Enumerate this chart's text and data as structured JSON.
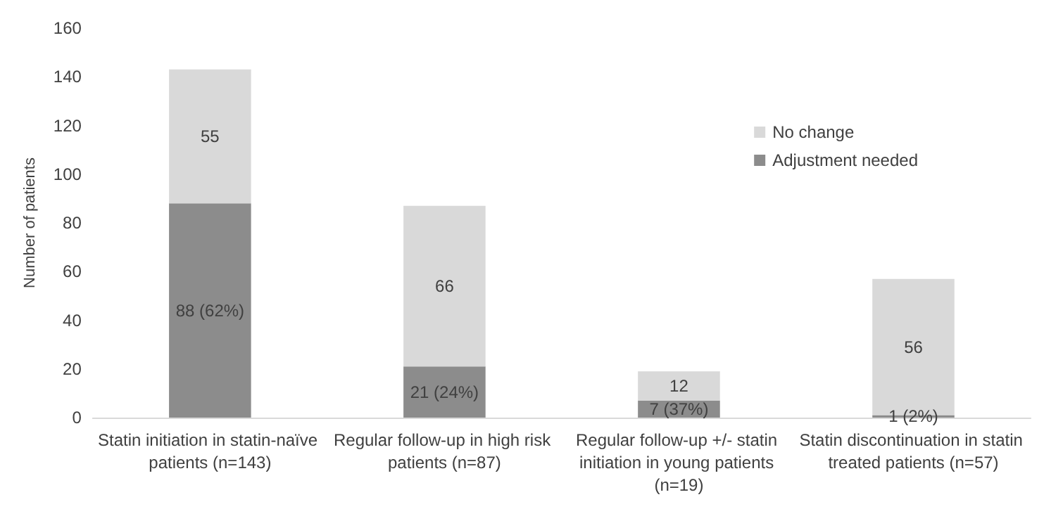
{
  "chart_data": {
    "type": "bar",
    "stacked": true,
    "ylabel": "Number of patients",
    "categories": [
      "Statin initiation in statin-naïve patients (n=143)",
      "Regular follow-up in high risk patients (n=87)",
      "Regular follow-up +/- statin initiation in young patients (n=19)",
      "Statin discontinuation in statin treated patients (n=57)"
    ],
    "series": [
      {
        "name": "Adjustment needed",
        "color": "#8c8c8c",
        "values": [
          88,
          21,
          7,
          1
        ],
        "value_labels": [
          "88 (62%)",
          "21 (24%)",
          "7 (37%)",
          "1 (2%)"
        ]
      },
      {
        "name": "No change",
        "color": "#d9d9d9",
        "values": [
          55,
          66,
          12,
          56
        ],
        "value_labels": [
          "55",
          "66",
          "12",
          "56"
        ]
      }
    ],
    "ylim": [
      0,
      160
    ],
    "yticks": [
      0,
      20,
      40,
      60,
      80,
      100,
      120,
      140,
      160
    ],
    "grid": false,
    "legend": "right"
  }
}
